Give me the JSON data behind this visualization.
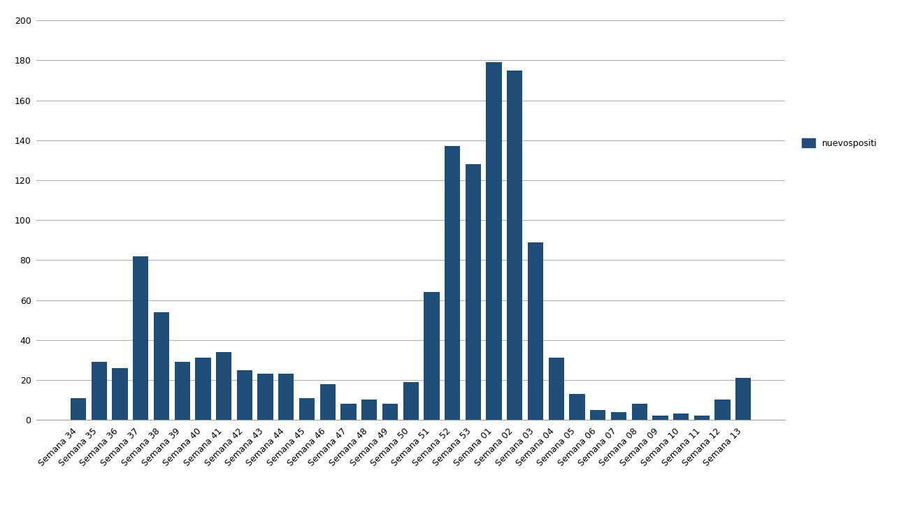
{
  "categories": [
    "Semana 34",
    "Semana 35",
    "Semana 36",
    "Semana 37",
    "Semana 38",
    "Semana 39",
    "Semana 40",
    "Semana 41",
    "Semana 42",
    "Semana 43",
    "Semana 44",
    "Semana 45",
    "Semana 46",
    "Semana 47",
    "Semana 48",
    "Semana 49",
    "Semana 50",
    "Semana 51",
    "Semana 52",
    "Semana 53",
    "Semana 01",
    "Semana 02",
    "Semana 03",
    "Semana 04",
    "Semana 05",
    "Semana 06",
    "Semana 07",
    "Semana 08",
    "Semana 09",
    "Semana 10",
    "Semana 11",
    "Semana 12",
    "Semana 13"
  ],
  "values": [
    11,
    29,
    26,
    82,
    54,
    29,
    31,
    34,
    25,
    23,
    23,
    11,
    18,
    8,
    10,
    8,
    19,
    64,
    137,
    128,
    179,
    175,
    89,
    31,
    13,
    5,
    4,
    8,
    2,
    3,
    2,
    10,
    21
  ],
  "bar_color": "#1f4e79",
  "legend_label": "nuevospositi",
  "ylim": [
    0,
    200
  ],
  "yticks": [
    0,
    20,
    40,
    60,
    80,
    100,
    120,
    140,
    160,
    180,
    200
  ],
  "background_color": "#ffffff",
  "grid_color": "#b0b0b0",
  "tick_label_fontsize": 9,
  "legend_fontsize": 9,
  "bar_width": 0.75
}
